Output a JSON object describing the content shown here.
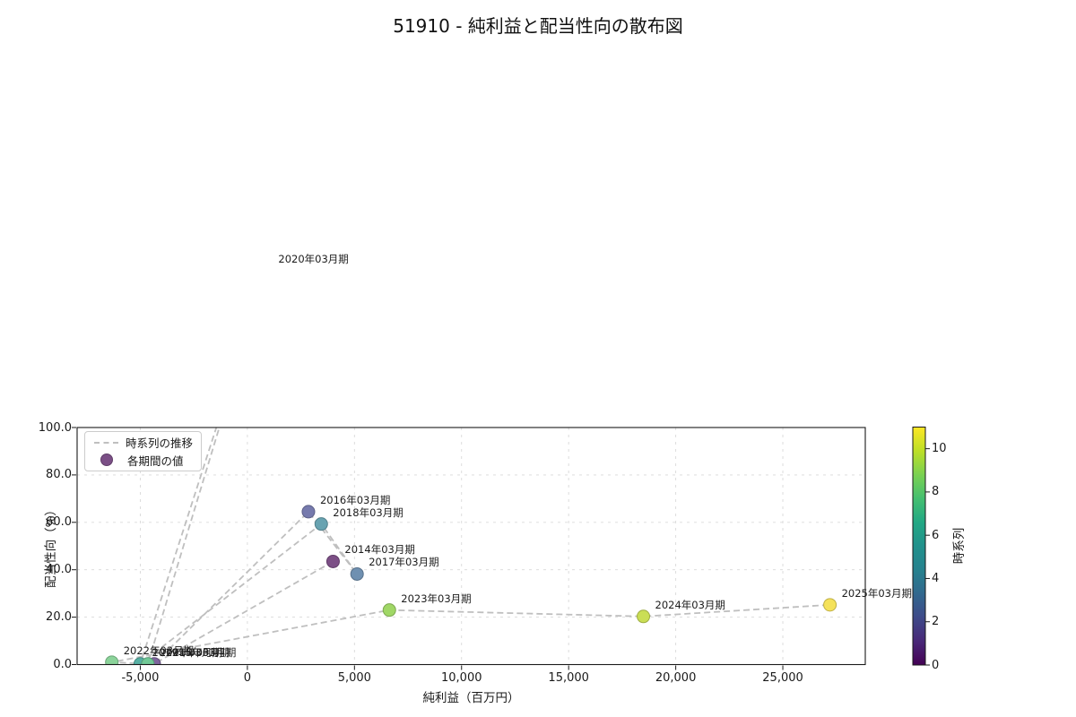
{
  "title": "51910 - 純利益と配当性向の散布図",
  "chart_data": {
    "type": "scatter",
    "title": "51910 - 純利益と配当性向の散布図",
    "xlabel": "純利益（百万円）",
    "ylabel": "配当性向（%）",
    "xlim": [
      -7950,
      28850
    ],
    "ylim": [
      0,
      100
    ],
    "grid": true,
    "xticks": {
      "values": [
        -5000,
        0,
        5000,
        10000,
        15000,
        20000,
        25000
      ],
      "labels": [
        "-5,000",
        "0",
        "5,000",
        "10,000",
        "15,000",
        "20,000",
        "25,000"
      ]
    },
    "yticks": {
      "values": [
        0,
        20,
        40,
        60,
        80,
        100
      ],
      "labels": [
        "0.0",
        "20.0",
        "40.0",
        "60.0",
        "80.0",
        "100.0"
      ]
    },
    "legend": {
      "line_label": "時系列の推移",
      "marker_label": "各期間の値",
      "marker_color": "#7b4f86",
      "line_color": "#bfbfbf"
    },
    "points": [
      {
        "label": "2014年03月期",
        "x": 4000,
        "y": 43.5,
        "t": 0,
        "color": "#7c4f86"
      },
      {
        "label": "2015年03月期",
        "x": -4350,
        "y": 0.3,
        "t": 1,
        "color": "#7e659d"
      },
      {
        "label": "2016年03月期",
        "x": 2850,
        "y": 64.5,
        "t": 2,
        "color": "#767aad"
      },
      {
        "label": "2017年03月期",
        "x": 5120,
        "y": 38.2,
        "t": 3,
        "color": "#6f90b1"
      },
      {
        "label": "2018年03月期",
        "x": 3450,
        "y": 59.3,
        "t": 4,
        "color": "#68a3b1"
      },
      {
        "label": "2019年03月期",
        "x": -5000,
        "y": 0.3,
        "t": 5,
        "color": "#57b0a4"
      },
      {
        "label": "2020年03月期",
        "x": 900,
        "y": 166.0,
        "t": 6,
        "color": "#64c2a9"
      },
      {
        "label": "2021年03月期",
        "x": -4650,
        "y": 0.3,
        "t": 7,
        "color": "#72c997"
      },
      {
        "label": "2022年03月期",
        "x": -6330,
        "y": 1.0,
        "t": 8,
        "color": "#8bd39a"
      },
      {
        "label": "2023年03月期",
        "x": 6630,
        "y": 23.0,
        "t": 9,
        "color": "#a0d766"
      },
      {
        "label": "2024年03月期",
        "x": 18490,
        "y": 20.3,
        "t": 10,
        "color": "#cade55"
      },
      {
        "label": "2025年03月期",
        "x": 27200,
        "y": 25.2,
        "t": 11,
        "color": "#f5e25a"
      }
    ],
    "colorbar": {
      "label": "時系列",
      "min": 0,
      "max": 11,
      "ticks": {
        "values": [
          0,
          2,
          4,
          6,
          8,
          10
        ],
        "labels": [
          "0",
          "2",
          "4",
          "6",
          "8",
          "10"
        ]
      },
      "gradient": [
        "#440154",
        "#482878",
        "#3e4a89",
        "#31688e",
        "#26828e",
        "#21918c",
        "#22a884",
        "#44bf70",
        "#7ad151",
        "#bddf26",
        "#fde725"
      ]
    }
  }
}
